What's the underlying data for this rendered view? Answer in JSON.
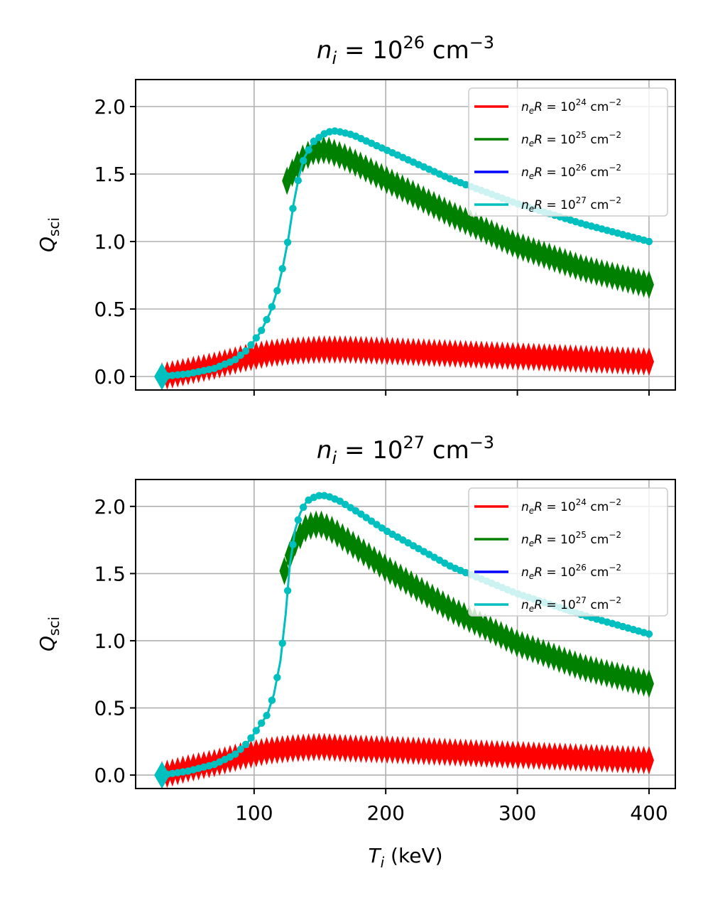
{
  "chart_data": [
    {
      "type": "line",
      "title": "n_i = 10^26 cm^-3",
      "title_parts": {
        "var": "n",
        "sub": "i",
        "eq": " = 10",
        "exp": "26",
        "unit": " cm",
        "unit_exp": "−3"
      },
      "xlabel": "T_i (keV)",
      "ylabel": "Q_sci",
      "xlim": [
        10,
        420
      ],
      "ylim": [
        -0.1,
        2.2
      ],
      "xticks": [
        100,
        200,
        300,
        400
      ],
      "yticks": [
        0.0,
        0.5,
        1.0,
        1.5,
        2.0
      ],
      "grid": true,
      "legend_position": "top-right",
      "series": [
        {
          "name": "n_eR = 10^24 cm^-2",
          "exp": "24",
          "color": "#ff0000",
          "marker": "thin-diamond",
          "points": [
            [
              30,
              0
            ],
            [
              50,
              0.04
            ],
            [
              70,
              0.08
            ],
            [
              90,
              0.13
            ],
            [
              110,
              0.17
            ],
            [
              130,
              0.19
            ],
            [
              150,
              0.2
            ],
            [
              170,
              0.2
            ],
            [
              200,
              0.19
            ],
            [
              250,
              0.17
            ],
            [
              300,
              0.15
            ],
            [
              350,
              0.13
            ],
            [
              400,
              0.11
            ]
          ]
        },
        {
          "name": "n_eR = 10^25 cm^-2",
          "exp": "25",
          "color": "#008000",
          "marker": "thin-diamond",
          "points": [
            [
              125,
              1.45
            ],
            [
              135,
              1.6
            ],
            [
              145,
              1.67
            ],
            [
              155,
              1.68
            ],
            [
              170,
              1.62
            ],
            [
              200,
              1.46
            ],
            [
              250,
              1.2
            ],
            [
              300,
              0.97
            ],
            [
              350,
              0.8
            ],
            [
              400,
              0.68
            ]
          ]
        },
        {
          "name": "n_eR = 10^26 cm^-2",
          "exp": "26",
          "color": "#0000ff",
          "marker": "none",
          "points": []
        },
        {
          "name": "n_eR = 10^27 cm^-2",
          "exp": "27",
          "color": "#00bfbf",
          "marker": "point",
          "points": [
            [
              30,
              0
            ],
            [
              50,
              0.02
            ],
            [
              70,
              0.06
            ],
            [
              85,
              0.12
            ],
            [
              95,
              0.2
            ],
            [
              105,
              0.33
            ],
            [
              112,
              0.47
            ],
            [
              118,
              0.65
            ],
            [
              122,
              0.82
            ],
            [
              126,
              1.02
            ],
            [
              130,
              1.28
            ],
            [
              134,
              1.48
            ],
            [
              138,
              1.62
            ],
            [
              145,
              1.74
            ],
            [
              155,
              1.81
            ],
            [
              162,
              1.82
            ],
            [
              175,
              1.79
            ],
            [
              200,
              1.68
            ],
            [
              250,
              1.46
            ],
            [
              300,
              1.28
            ],
            [
              350,
              1.13
            ],
            [
              400,
              1.0
            ]
          ]
        }
      ]
    },
    {
      "type": "line",
      "title": "n_i = 10^27 cm^-3",
      "title_parts": {
        "var": "n",
        "sub": "i",
        "eq": " = 10",
        "exp": "27",
        "unit": " cm",
        "unit_exp": "−3"
      },
      "xlabel": "T_i (keV)",
      "ylabel": "Q_sci",
      "xlim": [
        10,
        420
      ],
      "ylim": [
        -0.1,
        2.2
      ],
      "xticks": [
        100,
        200,
        300,
        400
      ],
      "yticks": [
        0.0,
        0.5,
        1.0,
        1.5,
        2.0
      ],
      "grid": true,
      "legend_position": "top-right",
      "series": [
        {
          "name": "n_eR = 10^24 cm^-2",
          "exp": "24",
          "color": "#ff0000",
          "marker": "thin-diamond",
          "points": [
            [
              30,
              0
            ],
            [
              50,
              0.05
            ],
            [
              70,
              0.09
            ],
            [
              90,
              0.14
            ],
            [
              110,
              0.18
            ],
            [
              130,
              0.2
            ],
            [
              150,
              0.21
            ],
            [
              170,
              0.2
            ],
            [
              200,
              0.19
            ],
            [
              250,
              0.17
            ],
            [
              300,
              0.15
            ],
            [
              350,
              0.13
            ],
            [
              400,
              0.11
            ]
          ]
        },
        {
          "name": "n_eR = 10^25 cm^-2",
          "exp": "25",
          "color": "#008000",
          "marker": "thin-diamond",
          "points": [
            [
              123,
              1.52
            ],
            [
              130,
              1.72
            ],
            [
              140,
              1.85
            ],
            [
              150,
              1.87
            ],
            [
              160,
              1.82
            ],
            [
              180,
              1.68
            ],
            [
              200,
              1.54
            ],
            [
              250,
              1.23
            ],
            [
              300,
              0.98
            ],
            [
              350,
              0.8
            ],
            [
              400,
              0.68
            ]
          ]
        },
        {
          "name": "n_eR = 10^26 cm^-2",
          "exp": "26",
          "color": "#0000ff",
          "marker": "none",
          "points": []
        },
        {
          "name": "n_eR = 10^27 cm^-2",
          "exp": "27",
          "color": "#00bfbf",
          "marker": "point",
          "points": [
            [
              30,
              0
            ],
            [
              50,
              0.03
            ],
            [
              70,
              0.08
            ],
            [
              85,
              0.15
            ],
            [
              95,
              0.24
            ],
            [
              103,
              0.35
            ],
            [
              110,
              0.45
            ],
            [
              115,
              0.6
            ],
            [
              120,
              0.85
            ],
            [
              124,
              1.2
            ],
            [
              127,
              1.55
            ],
            [
              131,
              1.82
            ],
            [
              135,
              1.95
            ],
            [
              140,
              2.04
            ],
            [
              148,
              2.08
            ],
            [
              155,
              2.08
            ],
            [
              165,
              2.04
            ],
            [
              180,
              1.95
            ],
            [
              200,
              1.82
            ],
            [
              250,
              1.55
            ],
            [
              300,
              1.35
            ],
            [
              350,
              1.19
            ],
            [
              400,
              1.05
            ]
          ]
        }
      ]
    }
  ]
}
